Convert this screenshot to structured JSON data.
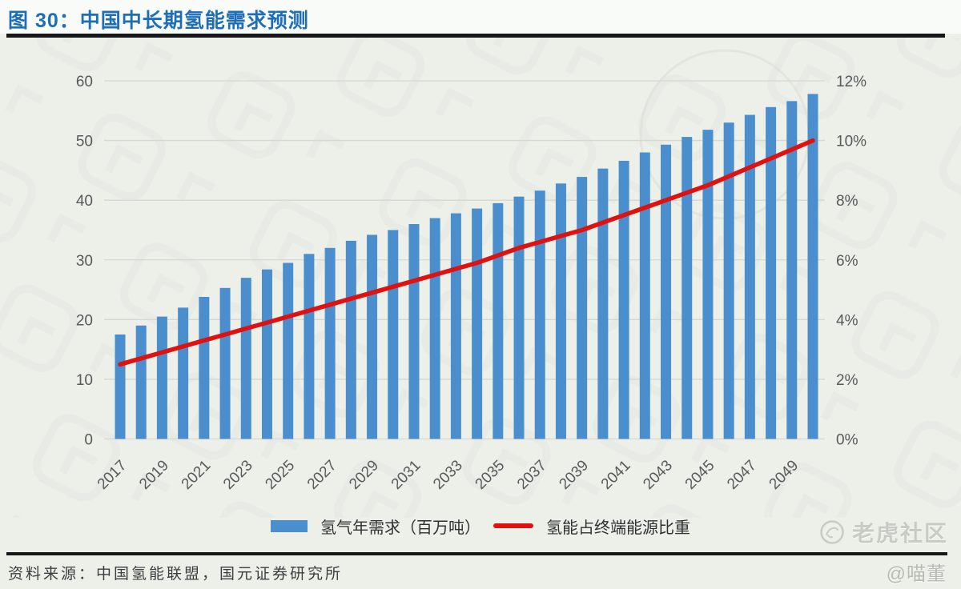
{
  "header": {
    "title": "图 30：中国中长期氢能需求预测"
  },
  "chart_data": {
    "type": "bar",
    "subtype": "bar+line dual-axis",
    "categories": [
      "2017",
      "2018",
      "2019",
      "2020",
      "2021",
      "2022",
      "2023",
      "2024",
      "2025",
      "2026",
      "2027",
      "2028",
      "2029",
      "2030",
      "2031",
      "2032",
      "2033",
      "2034",
      "2035",
      "2036",
      "2037",
      "2038",
      "2039",
      "2040",
      "2041",
      "2042",
      "2043",
      "2044",
      "2045",
      "2046",
      "2047",
      "2048",
      "2049",
      "2050"
    ],
    "x_tick_step": 2,
    "series": [
      {
        "name": "氢气年需求（百万吨）",
        "type": "bar",
        "axis": "left",
        "color": "#4a8ecd",
        "values": [
          17.5,
          19,
          20.5,
          22,
          23.8,
          25.3,
          27,
          28.4,
          29.5,
          31,
          32,
          33.2,
          34.2,
          35,
          36,
          37,
          37.8,
          38.6,
          39.5,
          40.6,
          41.6,
          42.8,
          43.9,
          45.3,
          46.6,
          48,
          49.3,
          50.6,
          51.8,
          53,
          54.3,
          55.6,
          56.6,
          57.8
        ]
      },
      {
        "name": "氢能占终端能源比重",
        "type": "line",
        "axis": "right",
        "color": "#e01111",
        "values": [
          2.5,
          2.7,
          2.9,
          3.1,
          3.3,
          3.5,
          3.7,
          3.9,
          4.1,
          4.3,
          4.5,
          4.7,
          4.9,
          5.1,
          5.3,
          5.5,
          5.7,
          5.9,
          6.15,
          6.4,
          6.6,
          6.8,
          7.0,
          7.25,
          7.5,
          7.75,
          8.0,
          8.25,
          8.5,
          8.8,
          9.1,
          9.4,
          9.7,
          10.0
        ]
      }
    ],
    "left_axis": {
      "ticks": [
        0,
        10,
        20,
        30,
        40,
        50,
        60
      ],
      "range": [
        0,
        60
      ]
    },
    "right_axis": {
      "ticks": [
        "0%",
        "2%",
        "4%",
        "6%",
        "8%",
        "10%",
        "12%"
      ],
      "tick_values": [
        0,
        2,
        4,
        6,
        8,
        10,
        12
      ],
      "range": [
        0,
        12
      ]
    },
    "grid": true,
    "legend_position": "bottom",
    "title": "中国中长期氢能需求预测"
  },
  "footer": {
    "source": "资料来源：中国氢能联盟，国元证券研究所"
  },
  "watermark": {
    "brand": "老虎社区",
    "handle": "@喵董"
  },
  "colors": {
    "title_blue": "#1d6db7",
    "bar_blue": "#4a8ecd",
    "line_red": "#e01111",
    "grid": "#d5d7d1",
    "axis_text": "#58595b",
    "panel_bg": "#edefe9",
    "rule_dark": "#15171b"
  }
}
